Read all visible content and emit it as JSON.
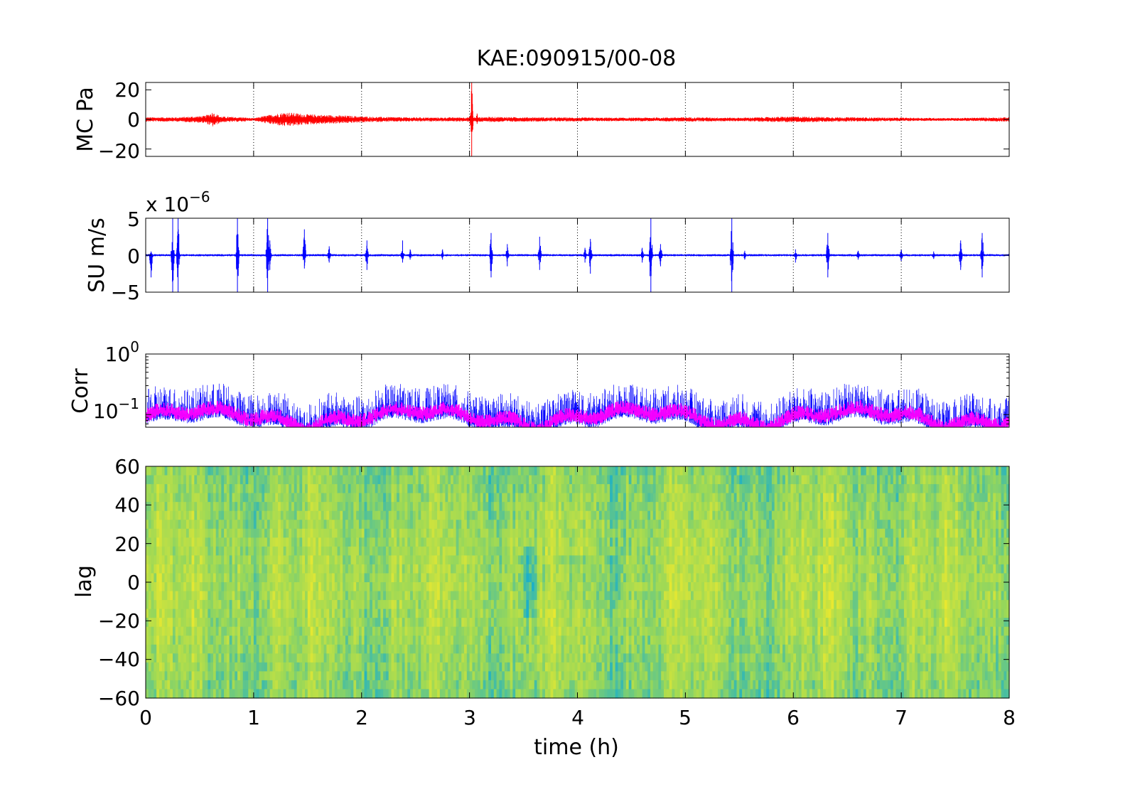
{
  "figure": {
    "title": "KAE:090915/00-08",
    "xlabel": "time (h)"
  },
  "chart_data": [
    {
      "type": "line",
      "ylabel": "MC Pa",
      "xlim": [
        0,
        8
      ],
      "ylim": [
        -25,
        25
      ],
      "x_ticks": [
        "0",
        "1",
        "2",
        "3",
        "4",
        "5",
        "6",
        "7",
        "8"
      ],
      "y_ticks": [
        {
          "value": 20,
          "label": "20"
        },
        {
          "value": 0,
          "label": "0"
        },
        {
          "value": -20,
          "label": "−20"
        }
      ],
      "grid": "x-dotted",
      "series": [
        {
          "color": "#ff0000",
          "baseline": 0,
          "envelope": {
            "t": [
              0,
              0.3,
              0.55,
              0.62,
              0.7,
              0.9,
              1.0,
              1.1,
              1.3,
              1.5,
              1.7,
              1.9,
              2.1,
              2.4,
              2.7,
              2.95,
              3.05,
              3.2,
              3.5,
              4.0,
              4.5,
              5.0,
              5.5,
              6.0,
              6.2,
              6.5,
              7.0,
              7.5,
              8.0
            ],
            "amp": [
              1.5,
              1.5,
              2.5,
              5,
              2,
              1.5,
              0.8,
              2.5,
              5,
              3.5,
              3,
              2.5,
              1.8,
              1.5,
              1.3,
              1.5,
              1.5,
              1.8,
              1.5,
              1.3,
              1.2,
              1.5,
              1.2,
              2,
              1.8,
              1.5,
              1.2,
              1,
              1.5
            ]
          },
          "spikes": [
            {
              "t": 3.02,
              "min": -25,
              "max": 25
            },
            {
              "t": 3.07,
              "min": -3,
              "max": 4
            }
          ]
        }
      ]
    },
    {
      "type": "line",
      "ylabel": "SU m/s",
      "multiplier": "x 10",
      "multiplier_exp": "−6",
      "xlim": [
        0,
        8
      ],
      "ylim": [
        -5,
        5
      ],
      "x_ticks": [
        "0",
        "1",
        "2",
        "3",
        "4",
        "5",
        "6",
        "7",
        "8"
      ],
      "y_ticks": [
        {
          "value": 5,
          "label": "5"
        },
        {
          "value": 0,
          "label": "0"
        },
        {
          "value": -5,
          "label": "−5"
        }
      ],
      "grid": "x-dotted",
      "series": [
        {
          "color": "#0000ff",
          "baseline": 0,
          "envelope": {
            "t": [
              0,
              8
            ],
            "amp": [
              0.15,
              0.15
            ]
          },
          "spikes": [
            {
              "t": 0.05,
              "min": -3,
              "max": 0.5
            },
            {
              "t": 0.25,
              "min": -5,
              "max": 5
            },
            {
              "t": 0.3,
              "min": -5,
              "max": 5
            },
            {
              "t": 0.85,
              "min": -5,
              "max": 5
            },
            {
              "t": 1.13,
              "min": -5,
              "max": 5
            },
            {
              "t": 1.15,
              "min": -2,
              "max": 2
            },
            {
              "t": 1.47,
              "min": -1.8,
              "max": 3.5
            },
            {
              "t": 1.7,
              "min": -1,
              "max": 1.2
            },
            {
              "t": 2.05,
              "min": -2,
              "max": 2
            },
            {
              "t": 2.38,
              "min": -1,
              "max": 2
            },
            {
              "t": 2.45,
              "min": -0.6,
              "max": 0.8
            },
            {
              "t": 2.75,
              "min": -0.6,
              "max": 0.8
            },
            {
              "t": 3.2,
              "min": -3,
              "max": 3
            },
            {
              "t": 3.35,
              "min": -1.5,
              "max": 1.5
            },
            {
              "t": 3.65,
              "min": -2,
              "max": 2.5
            },
            {
              "t": 4.07,
              "min": -1,
              "max": 1
            },
            {
              "t": 4.12,
              "min": -2.5,
              "max": 2.2
            },
            {
              "t": 4.6,
              "min": -1,
              "max": 1
            },
            {
              "t": 4.68,
              "min": -5,
              "max": 5
            },
            {
              "t": 4.77,
              "min": -1.5,
              "max": 1.5
            },
            {
              "t": 5.43,
              "min": -5,
              "max": 5
            },
            {
              "t": 5.55,
              "min": -0.6,
              "max": 0.6
            },
            {
              "t": 6.02,
              "min": -1,
              "max": 0.8
            },
            {
              "t": 6.32,
              "min": -3,
              "max": 3
            },
            {
              "t": 6.6,
              "min": -0.6,
              "max": 0.6
            },
            {
              "t": 7.0,
              "min": -0.8,
              "max": 0.8
            },
            {
              "t": 7.3,
              "min": -0.5,
              "max": 0.5
            },
            {
              "t": 7.55,
              "min": -2,
              "max": 2
            },
            {
              "t": 7.75,
              "min": -3,
              "max": 3
            }
          ]
        }
      ]
    },
    {
      "type": "line",
      "ylabel": "Corr",
      "yscale": "log",
      "xlim": [
        0,
        8
      ],
      "ylim": [
        0.0618,
        1
      ],
      "x_ticks": [
        "0",
        "1",
        "2",
        "3",
        "4",
        "5",
        "6",
        "7",
        "8"
      ],
      "y_ticks": [
        {
          "value": 1,
          "base": "10",
          "exp": "0"
        },
        {
          "value": 0.1,
          "base": "10",
          "exp": "−1"
        }
      ],
      "grid": "x-dotted",
      "series": [
        {
          "color": "#0000ff",
          "center": 0.09,
          "spread": [
            0.065,
            0.25
          ],
          "style": "dense"
        },
        {
          "color": "#ff00ff",
          "center": 0.09,
          "spread": [
            0.07,
            0.13
          ],
          "style": "thick"
        }
      ]
    },
    {
      "type": "heatmap",
      "ylabel": "lag",
      "xlim": [
        0,
        8
      ],
      "ylim": [
        -60,
        60
      ],
      "x_ticks": [
        "0",
        "1",
        "2",
        "3",
        "4",
        "5",
        "6",
        "7",
        "8"
      ],
      "y_ticks": [
        {
          "value": 60,
          "label": "60"
        },
        {
          "value": 40,
          "label": "40"
        },
        {
          "value": 20,
          "label": "20"
        },
        {
          "value": 0,
          "label": "0"
        },
        {
          "value": -20,
          "label": "−20"
        },
        {
          "value": -40,
          "label": "−40"
        },
        {
          "value": -60,
          "label": "−60"
        }
      ],
      "colormap": "jet",
      "colors": {
        "low": "#1cb0c8",
        "mid": "#9ad858",
        "high": "#e8e830"
      }
    }
  ]
}
